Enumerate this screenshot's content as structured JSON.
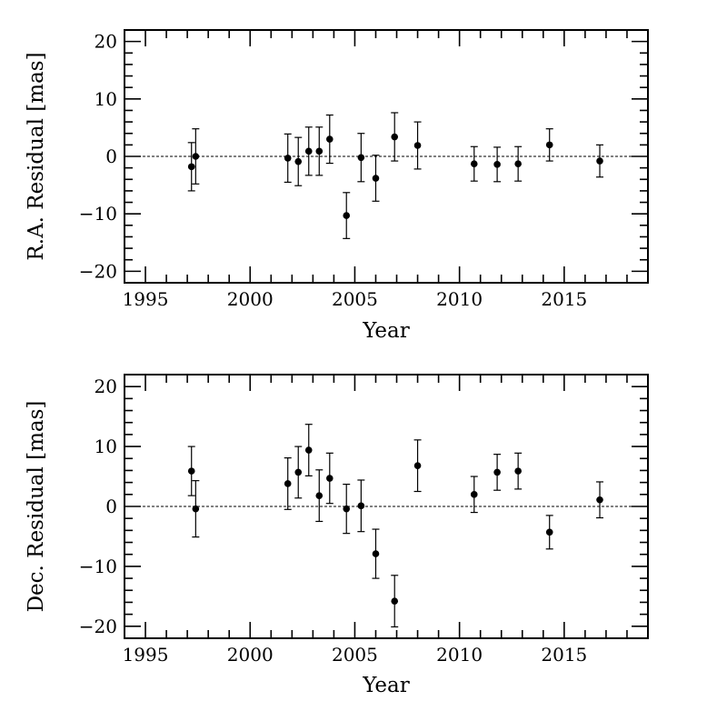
{
  "chart_data": [
    {
      "type": "scatter",
      "xlabel": "Year",
      "ylabel": "R.A. Residual [mas]",
      "xlim": [
        1994.0,
        2019.0
      ],
      "ylim": [
        -22,
        22
      ],
      "x_ticks": [
        1995,
        2000,
        2005,
        2010,
        2015
      ],
      "x_tick_labels": [
        "1995",
        "2000",
        "2005",
        "2010",
        "2015"
      ],
      "y_ticks": [
        -20,
        -10,
        0,
        10,
        20
      ],
      "y_tick_labels": [
        "−20",
        "−10",
        "0",
        "10",
        "20"
      ],
      "reference_line": 0,
      "points": [
        {
          "x": 1997.2,
          "y": -1.8,
          "err": 4.2
        },
        {
          "x": 1997.4,
          "y": 0.0,
          "err": 4.8
        },
        {
          "x": 2001.8,
          "y": -0.3,
          "err": 4.2
        },
        {
          "x": 2002.3,
          "y": -0.9,
          "err": 4.2
        },
        {
          "x": 2002.8,
          "y": 0.9,
          "err": 4.2
        },
        {
          "x": 2003.3,
          "y": 0.9,
          "err": 4.2
        },
        {
          "x": 2003.8,
          "y": 3.0,
          "err": 4.2
        },
        {
          "x": 2004.6,
          "y": -10.3,
          "err": 4.0
        },
        {
          "x": 2005.3,
          "y": -0.2,
          "err": 4.2
        },
        {
          "x": 2006.0,
          "y": -3.8,
          "err": 4.0
        },
        {
          "x": 2006.9,
          "y": 3.4,
          "err": 4.2
        },
        {
          "x": 2008.0,
          "y": 1.9,
          "err": 4.1
        },
        {
          "x": 2010.7,
          "y": -1.3,
          "err": 3.0
        },
        {
          "x": 2011.8,
          "y": -1.4,
          "err": 3.0
        },
        {
          "x": 2012.8,
          "y": -1.3,
          "err": 3.0
        },
        {
          "x": 2014.3,
          "y": 2.0,
          "err": 2.8
        },
        {
          "x": 2016.7,
          "y": -0.8,
          "err": 2.8
        }
      ]
    },
    {
      "type": "scatter",
      "xlabel": "Year",
      "ylabel": "Dec. Residual [mas]",
      "xlim": [
        1994.0,
        2019.0
      ],
      "ylim": [
        -22,
        22
      ],
      "x_ticks": [
        1995,
        2000,
        2005,
        2010,
        2015
      ],
      "x_tick_labels": [
        "1995",
        "2000",
        "2005",
        "2010",
        "2015"
      ],
      "y_ticks": [
        -20,
        -10,
        0,
        10,
        20
      ],
      "y_tick_labels": [
        "−20",
        "−10",
        "0",
        "10",
        "20"
      ],
      "reference_line": 0,
      "points": [
        {
          "x": 1997.2,
          "y": 5.9,
          "err": 4.1
        },
        {
          "x": 1997.4,
          "y": -0.4,
          "err": 4.7
        },
        {
          "x": 2001.8,
          "y": 3.8,
          "err": 4.3
        },
        {
          "x": 2002.3,
          "y": 5.7,
          "err": 4.3
        },
        {
          "x": 2002.8,
          "y": 9.4,
          "err": 4.3
        },
        {
          "x": 2003.3,
          "y": 1.8,
          "err": 4.3
        },
        {
          "x": 2003.8,
          "y": 4.7,
          "err": 4.2
        },
        {
          "x": 2004.6,
          "y": -0.4,
          "err": 4.1
        },
        {
          "x": 2005.3,
          "y": 0.1,
          "err": 4.3
        },
        {
          "x": 2006.0,
          "y": -7.9,
          "err": 4.1
        },
        {
          "x": 2006.9,
          "y": -15.8,
          "err": 4.3
        },
        {
          "x": 2008.0,
          "y": 6.8,
          "err": 4.3
        },
        {
          "x": 2010.7,
          "y": 2.0,
          "err": 3.0
        },
        {
          "x": 2011.8,
          "y": 5.7,
          "err": 3.0
        },
        {
          "x": 2012.8,
          "y": 5.9,
          "err": 3.0
        },
        {
          "x": 2014.3,
          "y": -4.3,
          "err": 2.8
        },
        {
          "x": 2016.7,
          "y": 1.1,
          "err": 3.0
        }
      ]
    }
  ]
}
